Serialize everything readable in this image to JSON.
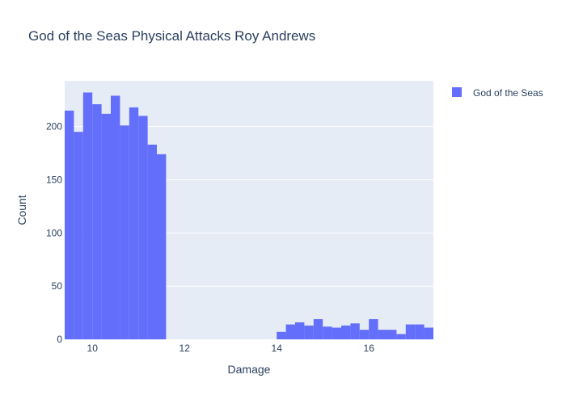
{
  "chart_data": {
    "type": "bar",
    "title": "God of the Seas Physical Attacks Roy Andrews",
    "xlabel": "Damage",
    "ylabel": "Count",
    "xlim": [
      9.4,
      17.4
    ],
    "ylim": [
      0,
      243
    ],
    "bin_width": 0.2,
    "x_ticks": [
      10,
      12,
      14,
      16
    ],
    "y_ticks": [
      0,
      50,
      100,
      150,
      200
    ],
    "grid": true,
    "legend_position": "top-right",
    "series": [
      {
        "name": "God of the Seas",
        "color": "#636efa",
        "bins": [
          {
            "x0": 9.4,
            "count": 215
          },
          {
            "x0": 9.6,
            "count": 195
          },
          {
            "x0": 9.8,
            "count": 232
          },
          {
            "x0": 10.0,
            "count": 221
          },
          {
            "x0": 10.2,
            "count": 212
          },
          {
            "x0": 10.4,
            "count": 229
          },
          {
            "x0": 10.6,
            "count": 201
          },
          {
            "x0": 10.8,
            "count": 218
          },
          {
            "x0": 11.0,
            "count": 210
          },
          {
            "x0": 11.2,
            "count": 183
          },
          {
            "x0": 11.4,
            "count": 174
          },
          {
            "x0": 14.0,
            "count": 7
          },
          {
            "x0": 14.2,
            "count": 14
          },
          {
            "x0": 14.4,
            "count": 16
          },
          {
            "x0": 14.6,
            "count": 13
          },
          {
            "x0": 14.8,
            "count": 19
          },
          {
            "x0": 15.0,
            "count": 12
          },
          {
            "x0": 15.2,
            "count": 11
          },
          {
            "x0": 15.4,
            "count": 13
          },
          {
            "x0": 15.6,
            "count": 15
          },
          {
            "x0": 15.8,
            "count": 9
          },
          {
            "x0": 16.0,
            "count": 19
          },
          {
            "x0": 16.2,
            "count": 9
          },
          {
            "x0": 16.4,
            "count": 9
          },
          {
            "x0": 16.6,
            "count": 5
          },
          {
            "x0": 16.8,
            "count": 14
          },
          {
            "x0": 17.0,
            "count": 14
          },
          {
            "x0": 17.2,
            "count": 11
          }
        ]
      }
    ]
  },
  "colors": {
    "plot_background": "#e5ecf6",
    "grid": "#ffffff",
    "text": "#2a3f5f"
  }
}
